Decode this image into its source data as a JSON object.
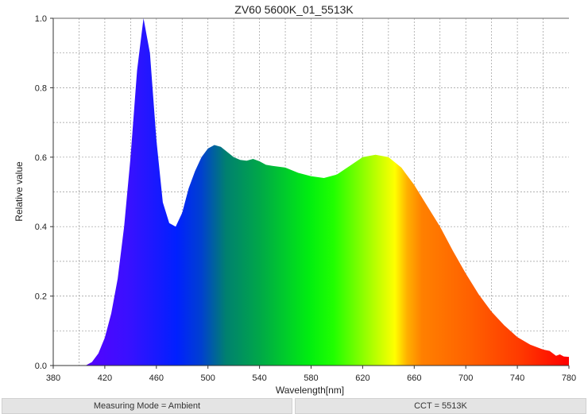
{
  "chart_data": {
    "type": "area",
    "title": "ZV60 5600K_01_5513K",
    "xlabel": "Wavelength[nm]",
    "ylabel": "Relative value",
    "xlim": [
      380,
      780
    ],
    "ylim": [
      0,
      1.0
    ],
    "xticks": [
      380,
      420,
      460,
      500,
      540,
      580,
      620,
      660,
      700,
      740,
      780
    ],
    "yticks": [
      "0.0",
      "0.2",
      "0.4",
      "0.6",
      "0.8",
      "1.0"
    ],
    "grid": true,
    "fill": "visible-spectrum gradient",
    "x": [
      400,
      405,
      410,
      415,
      420,
      425,
      430,
      435,
      440,
      445,
      450,
      455,
      460,
      465,
      470,
      475,
      480,
      485,
      490,
      495,
      500,
      505,
      510,
      515,
      520,
      525,
      530,
      535,
      540,
      545,
      550,
      560,
      570,
      580,
      590,
      600,
      610,
      620,
      630,
      640,
      650,
      660,
      670,
      680,
      690,
      700,
      710,
      720,
      730,
      740,
      750,
      760,
      765,
      770,
      773,
      776,
      780
    ],
    "y": [
      0,
      0,
      0.01,
      0.035,
      0.08,
      0.15,
      0.25,
      0.4,
      0.6,
      0.85,
      1.0,
      0.9,
      0.65,
      0.47,
      0.41,
      0.4,
      0.44,
      0.51,
      0.56,
      0.6,
      0.625,
      0.635,
      0.63,
      0.615,
      0.6,
      0.592,
      0.59,
      0.595,
      0.588,
      0.578,
      0.575,
      0.57,
      0.555,
      0.545,
      0.54,
      0.55,
      0.575,
      0.6,
      0.607,
      0.6,
      0.57,
      0.52,
      0.46,
      0.4,
      0.33,
      0.265,
      0.205,
      0.155,
      0.115,
      0.082,
      0.06,
      0.046,
      0.042,
      0.028,
      0.032,
      0.026,
      0.025
    ]
  },
  "footer": {
    "measuring_mode": "Measuring Mode = Ambient",
    "cct": "CCT = 5513K"
  }
}
